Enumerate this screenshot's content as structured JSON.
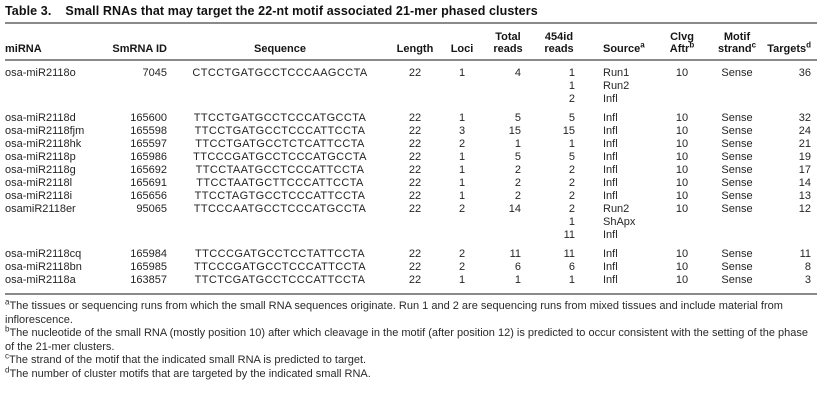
{
  "title": {
    "label": "Table 3.",
    "text": "Small RNAs that may target the 22-nt motif associated 21-mer phased clusters"
  },
  "table": {
    "columns": [
      {
        "id": "mirna",
        "lines": [
          "miRNA"
        ],
        "sup": ""
      },
      {
        "id": "smrna_id",
        "lines": [
          "SmRNA ID"
        ],
        "sup": ""
      },
      {
        "id": "sequence",
        "lines": [
          "Sequence"
        ],
        "sup": ""
      },
      {
        "id": "length",
        "lines": [
          "Length"
        ],
        "sup": ""
      },
      {
        "id": "loci",
        "lines": [
          "Loci"
        ],
        "sup": ""
      },
      {
        "id": "total_reads",
        "lines": [
          "Total",
          "reads"
        ],
        "sup": ""
      },
      {
        "id": "reads_454id",
        "lines": [
          "454id",
          "reads"
        ],
        "sup": ""
      },
      {
        "id": "source",
        "lines": [
          "Source"
        ],
        "sup": "a"
      },
      {
        "id": "clvg_aftr",
        "lines": [
          "Clvg",
          "Aftr"
        ],
        "sup": "b"
      },
      {
        "id": "motif_strand",
        "lines": [
          "Motif",
          "strand"
        ],
        "sup": "c"
      },
      {
        "id": "targets",
        "lines": [
          "Targets"
        ],
        "sup": "d"
      }
    ],
    "rows": [
      {
        "cells": [
          "osa-miR2118o",
          "7045",
          "CTCCTGATGCCTCCCAAGCCTA",
          "22",
          "1",
          "4",
          [
            "1",
            "1",
            "2"
          ],
          [
            "Run1",
            "Run2",
            "Infl"
          ],
          "10",
          "Sense",
          "36"
        ],
        "gap_after": true
      },
      {
        "cells": [
          "osa-miR2118d",
          "165600",
          "TTCCTGATGCCTCCCATGCCTA",
          "22",
          "1",
          "5",
          "5",
          "Infl",
          "10",
          "Sense",
          "32"
        ]
      },
      {
        "cells": [
          "osa-miR2118fjm",
          "165598",
          "TTCCTGATGCCTCCCATTCCTA",
          "22",
          "3",
          "15",
          "15",
          "Infl",
          "10",
          "Sense",
          "24"
        ]
      },
      {
        "cells": [
          "osa-miR2118hk",
          "165597",
          "TTCCTGATGCCTCTCATTCCTA",
          "22",
          "2",
          "1",
          "1",
          "Infl",
          "10",
          "Sense",
          "21"
        ]
      },
      {
        "cells": [
          "osa-miR2118p",
          "165986",
          "TTCCCGATGCCTCCCATGCCTA",
          "22",
          "1",
          "5",
          "5",
          "Infl",
          "10",
          "Sense",
          "19"
        ]
      },
      {
        "cells": [
          "osa-miR2118g",
          "165692",
          "TTCCTAATGCCTCCCATTCCTA",
          "22",
          "1",
          "2",
          "2",
          "Infl",
          "10",
          "Sense",
          "17"
        ]
      },
      {
        "cells": [
          "osa-miR2118l",
          "165691",
          "TTCCTAATGCTTCCCATTCCTA",
          "22",
          "1",
          "2",
          "2",
          "Infl",
          "10",
          "Sense",
          "14"
        ]
      },
      {
        "cells": [
          "osa-miR2118i",
          "165656",
          "TTCCTAGTGCCTCCCATTCCTA",
          "22",
          "1",
          "2",
          "2",
          "Infl",
          "10",
          "Sense",
          "13"
        ]
      },
      {
        "cells": [
          "osamiR2118er",
          "95065",
          "TTCCCAATGCCTCCCATGCCTA",
          "22",
          "2",
          "14",
          [
            "2",
            "1",
            "11"
          ],
          [
            "Run2",
            "ShApx",
            "Infl"
          ],
          "10",
          "Sense",
          "12"
        ],
        "gap_after": true
      },
      {
        "cells": [
          "osa-miR2118cq",
          "165984",
          "TTCCCGATGCCTCCTATTCCTA",
          "22",
          "2",
          "11",
          "11",
          "Infl",
          "10",
          "Sense",
          "11"
        ]
      },
      {
        "cells": [
          "osa-miR2118bn",
          "165985",
          "TTCCCGATGCCTCCCATTCCTA",
          "22",
          "2",
          "6",
          "6",
          "Infl",
          "10",
          "Sense",
          "8"
        ]
      },
      {
        "cells": [
          "osa-miR2118a",
          "163857",
          "TTCTCGATGCCTCCCATTCCTA",
          "22",
          "1",
          "1",
          "1",
          "Infl",
          "10",
          "Sense",
          "3"
        ]
      }
    ]
  },
  "footnotes": [
    {
      "sup": "a",
      "text": "The tissues or sequencing runs from which the small RNA sequences originate. Run 1 and 2 are sequencing runs from mixed tissues and include material from inflorescence."
    },
    {
      "sup": "b",
      "text": "The nucleotide of the small RNA (mostly position 10) after which cleavage in the motif (after position 12) is predicted to occur consistent with the setting of the phase of the 21-mer clusters."
    },
    {
      "sup": "c",
      "text": "The strand of the motif that the indicated small RNA is predicted to target."
    },
    {
      "sup": "d",
      "text": "The number of cluster motifs that are targeted by the indicated small RNA."
    }
  ]
}
